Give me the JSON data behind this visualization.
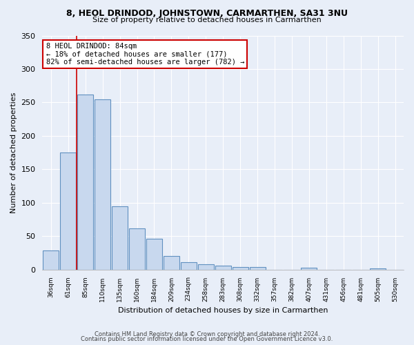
{
  "title": "8, HEOL DRINDOD, JOHNSTOWN, CARMARTHEN, SA31 3NU",
  "subtitle": "Size of property relative to detached houses in Carmarthen",
  "xlabel": "Distribution of detached houses by size in Carmarthen",
  "ylabel": "Number of detached properties",
  "bar_labels": [
    "36sqm",
    "61sqm",
    "85sqm",
    "110sqm",
    "135sqm",
    "160sqm",
    "184sqm",
    "209sqm",
    "234sqm",
    "258sqm",
    "283sqm",
    "308sqm",
    "332sqm",
    "357sqm",
    "382sqm",
    "407sqm",
    "431sqm",
    "456sqm",
    "481sqm",
    "505sqm",
    "530sqm"
  ],
  "bar_values": [
    28,
    175,
    262,
    255,
    95,
    62,
    46,
    20,
    11,
    8,
    6,
    4,
    4,
    0,
    0,
    3,
    0,
    0,
    0,
    2,
    0
  ],
  "bar_fill_color": "#c8d8ee",
  "bar_edge_color": "#6090c0",
  "marker_color": "#cc0000",
  "annotation_line1": "8 HEOL DRINDOD: 84sqm",
  "annotation_line2": "← 18% of detached houses are smaller (177)",
  "annotation_line3": "82% of semi-detached houses are larger (782) →",
  "annotation_box_color": "#ffffff",
  "annotation_box_edge": "#cc0000",
  "ylim": [
    0,
    350
  ],
  "yticks": [
    0,
    50,
    100,
    150,
    200,
    250,
    300,
    350
  ],
  "footer_line1": "Contains HM Land Registry data © Crown copyright and database right 2024.",
  "footer_line2": "Contains public sector information licensed under the Open Government Licence v3.0.",
  "bg_color": "#e8eef8",
  "plot_bg_color": "#e8eef8",
  "grid_color": "#ffffff"
}
